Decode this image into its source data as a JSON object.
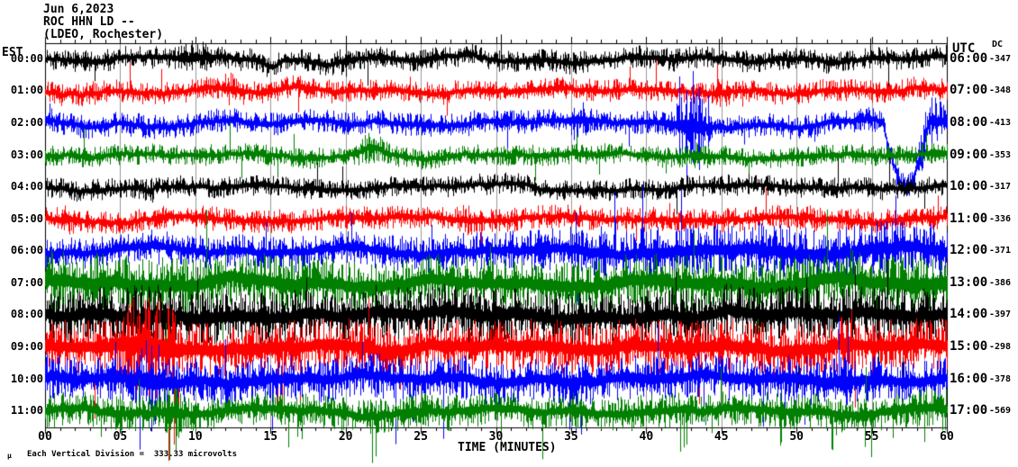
{
  "header": {
    "date_line": "Jun 6,2023",
    "station_line": "ROC HHN LD --",
    "location_line": "(LDEO, Rochester)"
  },
  "axes": {
    "left_title": "EST",
    "right_title": "UTC",
    "right_subtitle": "DC",
    "x_title": "TIME (MINUTES)",
    "x_ticks": [
      "00",
      "05",
      "10",
      "15",
      "20",
      "25",
      "30",
      "35",
      "40",
      "45",
      "50",
      "55",
      "60"
    ]
  },
  "footer": {
    "marker": "µ",
    "scale_note": "Each Vertical Division =  333.33 microvolts"
  },
  "chart_data": {
    "type": "line",
    "subtype": "helicorder-seismogram",
    "title": "ROC HHN LD -- (LDEO, Rochester) Jun 6,2023",
    "xlabel": "TIME (MINUTES)",
    "x_axis": {
      "min": 0,
      "max": 60,
      "major_tick_minutes": 5,
      "minor_tick_minutes": 1
    },
    "grid": {
      "vertical_every_minutes": 5,
      "color": "#999999"
    },
    "frame_color": "#000000",
    "background_color": "#ffffff",
    "trace_colors_cycle": [
      "#000000",
      "#ff0000",
      "#0000ff",
      "#007f00"
    ],
    "scale_microvolts_per_division": 333.33,
    "rows": [
      {
        "est": "00:00",
        "utc": "06:00",
        "dc": "-347",
        "color": "#000000",
        "seed": 101,
        "base_amp": 7,
        "wander": 2.2,
        "spike_prob": 0.006,
        "spike_down_bias": 0.5,
        "envelope": [
          [
            0,
            1
          ],
          [
            60,
            1
          ]
        ],
        "events": [
          [
            8.5,
            11,
            1.7
          ],
          [
            19.5,
            20.5,
            1.4
          ]
        ],
        "offsets": [
          [
            14.2,
            15.8,
            7
          ]
        ],
        "spikes": [
          [
            2.5,
            8,
            9
          ],
          [
            9.7,
            16,
            6
          ],
          [
            20.0,
            26,
            5
          ]
        ]
      },
      {
        "est": "01:00",
        "utc": "07:00",
        "dc": "-348",
        "color": "#ff0000",
        "seed": 202,
        "base_amp": 7,
        "wander": 2.0,
        "spike_prob": 0.006,
        "spike_down_bias": 0.5,
        "envelope": [
          [
            0,
            1
          ],
          [
            60,
            1
          ]
        ],
        "events": [
          [
            11.5,
            13.5,
            1.5
          ],
          [
            44.3,
            45.7,
            1.5
          ]
        ],
        "offsets": [],
        "spikes": [
          [
            3.2,
            11,
            9
          ],
          [
            45.0,
            13,
            11
          ]
        ]
      },
      {
        "est": "02:00",
        "utc": "08:00",
        "dc": "-413",
        "color": "#0000ff",
        "seed": 303,
        "base_amp": 7.5,
        "wander": 2.5,
        "spike_prob": 0.006,
        "spike_down_bias": 0.5,
        "envelope": [
          [
            0,
            1
          ],
          [
            60,
            1
          ]
        ],
        "events": [
          [
            34.5,
            36.5,
            1.7
          ],
          [
            41.5,
            44.5,
            3.0
          ],
          [
            57.5,
            60,
            2.2
          ]
        ],
        "offsets": [
          [
            55.7,
            58.8,
            72
          ]
        ],
        "spikes": [
          [
            0.3,
            22,
            6
          ],
          [
            42.2,
            52,
            34
          ],
          [
            42.7,
            36,
            62
          ],
          [
            43.1,
            58,
            44
          ],
          [
            43.5,
            40,
            52
          ]
        ]
      },
      {
        "est": "03:00",
        "utc": "09:00",
        "dc": "-353",
        "color": "#007f00",
        "seed": 404,
        "base_amp": 6.5,
        "wander": 2.0,
        "spike_prob": 0.006,
        "spike_down_bias": 0.6,
        "envelope": [
          [
            0,
            1
          ],
          [
            60,
            1
          ]
        ],
        "events": [
          [
            20.5,
            22.8,
            1.5
          ],
          [
            43,
            44.5,
            1.5
          ]
        ],
        "offsets": [
          [
            20.3,
            22.8,
            -7
          ]
        ],
        "spikes": [
          [
            23.5,
            6,
            13
          ]
        ]
      },
      {
        "est": "04:00",
        "utc": "10:00",
        "dc": "-317",
        "color": "#000000",
        "seed": 505,
        "base_amp": 6.5,
        "wander": 2.0,
        "spike_prob": 0.005,
        "spike_down_bias": 0.5,
        "envelope": [
          [
            0,
            1
          ],
          [
            60,
            1
          ]
        ],
        "events": [
          [
            6,
            7.5,
            1.3
          ]
        ],
        "offsets": [
          [
            6.3,
            7.3,
            5
          ]
        ],
        "spikes": [
          [
            31,
            11,
            7
          ]
        ]
      },
      {
        "est": "05:00",
        "utc": "11:00",
        "dc": "-336",
        "color": "#ff0000",
        "seed": 606,
        "base_amp": 7.5,
        "wander": 2.0,
        "spike_prob": 0.006,
        "spike_down_bias": 0.5,
        "envelope": [
          [
            0,
            1
          ],
          [
            60,
            1
          ]
        ],
        "events": [
          [
            0.5,
            2,
            1.3
          ],
          [
            27,
            29,
            1.3
          ]
        ],
        "offsets": [],
        "spikes": [
          [
            28,
            12,
            9
          ]
        ]
      },
      {
        "est": "06:00",
        "utc": "12:00",
        "dc": "-371",
        "color": "#0000ff",
        "seed": 707,
        "base_amp": 11,
        "wander": 3.0,
        "spike_prob": 0.01,
        "spike_down_bias": 0.5,
        "envelope": [
          [
            0,
            0.85
          ],
          [
            15,
            0.95
          ],
          [
            30,
            1.1
          ],
          [
            40,
            1.45
          ],
          [
            50,
            1.55
          ],
          [
            60,
            1.5
          ]
        ],
        "events": [
          [
            7,
            8,
            1.4
          ]
        ],
        "offsets": [],
        "spikes": [
          [
            37,
            28,
            24
          ],
          [
            47.5,
            32,
            28
          ],
          [
            56,
            28,
            32
          ]
        ]
      },
      {
        "est": "07:00",
        "utc": "13:00",
        "dc": "-386",
        "color": "#007f00",
        "seed": 808,
        "base_amp": 17,
        "wander": 3.0,
        "spike_prob": 0.012,
        "spike_down_bias": 0.65,
        "envelope": [
          [
            0,
            1.15
          ],
          [
            10,
            1.05
          ],
          [
            30,
            0.95
          ],
          [
            45,
            1.05
          ],
          [
            60,
            1.1
          ]
        ],
        "events": [],
        "offsets": [],
        "spikes": [
          [
            0.4,
            38,
            30
          ],
          [
            15.2,
            28,
            34
          ],
          [
            35.5,
            24,
            38
          ]
        ]
      },
      {
        "est": "08:00",
        "utc": "14:00",
        "dc": "-397",
        "color": "#000000",
        "seed": 909,
        "base_amp": 17,
        "wander": 3.0,
        "spike_prob": 0.012,
        "spike_down_bias": 0.5,
        "envelope": [
          [
            0,
            1
          ],
          [
            60,
            1
          ]
        ],
        "events": [
          [
            5,
            9,
            1.3
          ]
        ],
        "offsets": [],
        "spikes": [
          [
            7.5,
            34,
            38
          ]
        ]
      },
      {
        "est": "09:00",
        "utc": "15:00",
        "dc": "-298",
        "color": "#ff0000",
        "seed": 1010,
        "base_amp": 17,
        "wander": 3.0,
        "spike_prob": 0.012,
        "spike_down_bias": 0.6,
        "envelope": [
          [
            0,
            1
          ],
          [
            60,
            1
          ]
        ],
        "events": [
          [
            4.5,
            9.5,
            1.9
          ]
        ],
        "offsets": [],
        "spikes": [
          [
            5.5,
            48,
            28
          ],
          [
            8.2,
            38,
            126
          ],
          [
            8.6,
            28,
            108
          ],
          [
            8.9,
            20,
            92
          ],
          [
            21.5,
            55,
            18
          ]
        ]
      },
      {
        "est": "10:00",
        "utc": "16:00",
        "dc": "-378",
        "color": "#0000ff",
        "seed": 1111,
        "base_amp": 14,
        "wander": 3.0,
        "spike_prob": 0.012,
        "spike_down_bias": 0.6,
        "envelope": [
          [
            0,
            1
          ],
          [
            60,
            1
          ]
        ],
        "events": [
          [
            5.5,
            8.5,
            1.9
          ],
          [
            48,
            56,
            1.15
          ]
        ],
        "offsets": [],
        "spikes": [
          [
            6.3,
            28,
            78
          ],
          [
            7.1,
            24,
            58
          ],
          [
            23.3,
            14,
            72
          ],
          [
            26.5,
            18,
            66
          ]
        ]
      },
      {
        "est": "11:00",
        "utc": "17:00",
        "dc": "-569",
        "color": "#007f00",
        "seed": 1212,
        "base_amp": 11,
        "wander": 2.5,
        "spike_prob": 0.02,
        "spike_down_bias": 0.85,
        "envelope": [
          [
            0,
            1
          ],
          [
            55,
            1
          ],
          [
            60,
            1.2
          ]
        ],
        "events": [
          [
            7.5,
            9.5,
            1.6
          ]
        ],
        "offsets": [],
        "spikes": [
          [
            8.3,
            18,
            54
          ],
          [
            8.7,
            14,
            44
          ],
          [
            16.2,
            10,
            40
          ],
          [
            22.0,
            12,
            50
          ],
          [
            30.3,
            10,
            44
          ],
          [
            42.5,
            12,
            40
          ],
          [
            48.9,
            10,
            38
          ],
          [
            52.3,
            10,
            42
          ],
          [
            58.5,
            12,
            34
          ]
        ]
      }
    ]
  }
}
